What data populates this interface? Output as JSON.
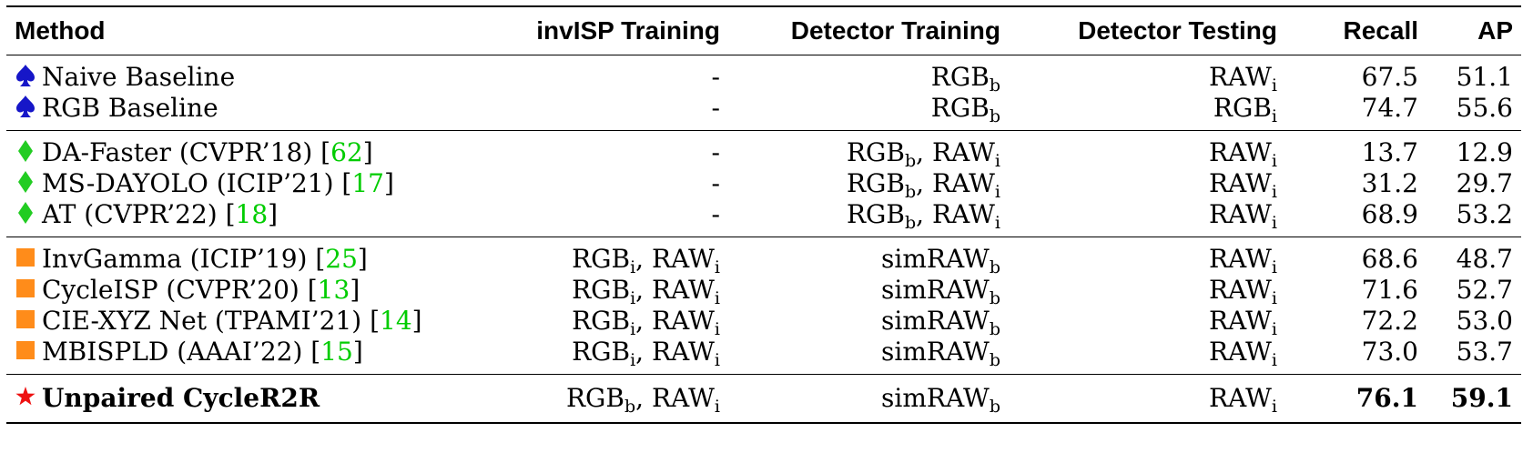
{
  "colors": {
    "ref": "#00cc00",
    "spade": "#1616c8",
    "diamond": "#22cc22",
    "square": "#ff8c1a",
    "star": "#ee1111"
  },
  "headers": {
    "method": "Method",
    "invisp": "invISP Training",
    "det_train": "Detector Training",
    "det_test": "Detector Testing",
    "recall": "Recall",
    "ap": "AP"
  },
  "rows": [
    {
      "icon": "spade-icon",
      "name": "Naive Baseline",
      "ref": "",
      "inv": [
        {
          "t": "-",
          "s": ""
        }
      ],
      "train": [
        {
          "t": "RGB",
          "s": "b"
        }
      ],
      "test": [
        {
          "t": "RAW",
          "s": "i"
        }
      ],
      "recall": "67.5",
      "ap": "51.1"
    },
    {
      "icon": "spade-icon",
      "name": "RGB Baseline",
      "ref": "",
      "inv": [
        {
          "t": "-",
          "s": ""
        }
      ],
      "train": [
        {
          "t": "RGB",
          "s": "b"
        }
      ],
      "test": [
        {
          "t": "RGB",
          "s": "i"
        }
      ],
      "recall": "74.7",
      "ap": "55.6"
    },
    {
      "icon": "diamond-icon",
      "name": "DA-Faster (CVPR’18) [",
      "ref": "62",
      "inv": [
        {
          "t": "-",
          "s": ""
        }
      ],
      "train": [
        {
          "t": "RGB",
          "s": "b"
        },
        {
          "t": ", RAW",
          "s": "i"
        }
      ],
      "test": [
        {
          "t": "RAW",
          "s": "i"
        }
      ],
      "recall": "13.7",
      "ap": "12.9"
    },
    {
      "icon": "diamond-icon",
      "name": "MS-DAYOLO (ICIP’21) [",
      "ref": "17",
      "inv": [
        {
          "t": "-",
          "s": ""
        }
      ],
      "train": [
        {
          "t": "RGB",
          "s": "b"
        },
        {
          "t": ", RAW",
          "s": "i"
        }
      ],
      "test": [
        {
          "t": "RAW",
          "s": "i"
        }
      ],
      "recall": "31.2",
      "ap": "29.7"
    },
    {
      "icon": "diamond-icon",
      "name": "AT (CVPR’22) [",
      "ref": "18",
      "inv": [
        {
          "t": "-",
          "s": ""
        }
      ],
      "train": [
        {
          "t": "RGB",
          "s": "b"
        },
        {
          "t": ", RAW",
          "s": "i"
        }
      ],
      "test": [
        {
          "t": "RAW",
          "s": "i"
        }
      ],
      "recall": "68.9",
      "ap": "53.2"
    },
    {
      "icon": "square-icon",
      "name": "InvGamma (ICIP’19) [",
      "ref": "25",
      "inv": [
        {
          "t": "RGB",
          "s": "i"
        },
        {
          "t": ", RAW",
          "s": "i"
        }
      ],
      "train": [
        {
          "t": "simRAW",
          "s": "b"
        }
      ],
      "test": [
        {
          "t": "RAW",
          "s": "i"
        }
      ],
      "recall": "68.6",
      "ap": "48.7"
    },
    {
      "icon": "square-icon",
      "name": "CycleISP (CVPR’20) [",
      "ref": "13",
      "inv": [
        {
          "t": "RGB",
          "s": "i"
        },
        {
          "t": ", RAW",
          "s": "i"
        }
      ],
      "train": [
        {
          "t": "simRAW",
          "s": "b"
        }
      ],
      "test": [
        {
          "t": "RAW",
          "s": "i"
        }
      ],
      "recall": "71.6",
      "ap": "52.7"
    },
    {
      "icon": "square-icon",
      "name": "CIE-XYZ Net (TPAMI’21) [",
      "ref": "14",
      "inv": [
        {
          "t": "RGB",
          "s": "i"
        },
        {
          "t": ", RAW",
          "s": "i"
        }
      ],
      "train": [
        {
          "t": "simRAW",
          "s": "b"
        }
      ],
      "test": [
        {
          "t": "RAW",
          "s": "i"
        }
      ],
      "recall": "72.2",
      "ap": "53.0"
    },
    {
      "icon": "square-icon",
      "name": "MBISPLD (AAAI’22) [",
      "ref": "15",
      "inv": [
        {
          "t": "RGB",
          "s": "i"
        },
        {
          "t": ", RAW",
          "s": "i"
        }
      ],
      "train": [
        {
          "t": "simRAW",
          "s": "b"
        }
      ],
      "test": [
        {
          "t": "RAW",
          "s": "i"
        }
      ],
      "recall": "73.0",
      "ap": "53.7"
    },
    {
      "icon": "star-icon",
      "name": "Unpaired CycleR2R",
      "ref": "",
      "bold": true,
      "inv": [
        {
          "t": "RGB",
          "s": "b"
        },
        {
          "t": ", RAW",
          "s": "i"
        }
      ],
      "train": [
        {
          "t": "simRAW",
          "s": "b"
        }
      ],
      "test": [
        {
          "t": "RAW",
          "s": "i"
        }
      ],
      "recall": "76.1",
      "ap": "59.1"
    }
  ]
}
